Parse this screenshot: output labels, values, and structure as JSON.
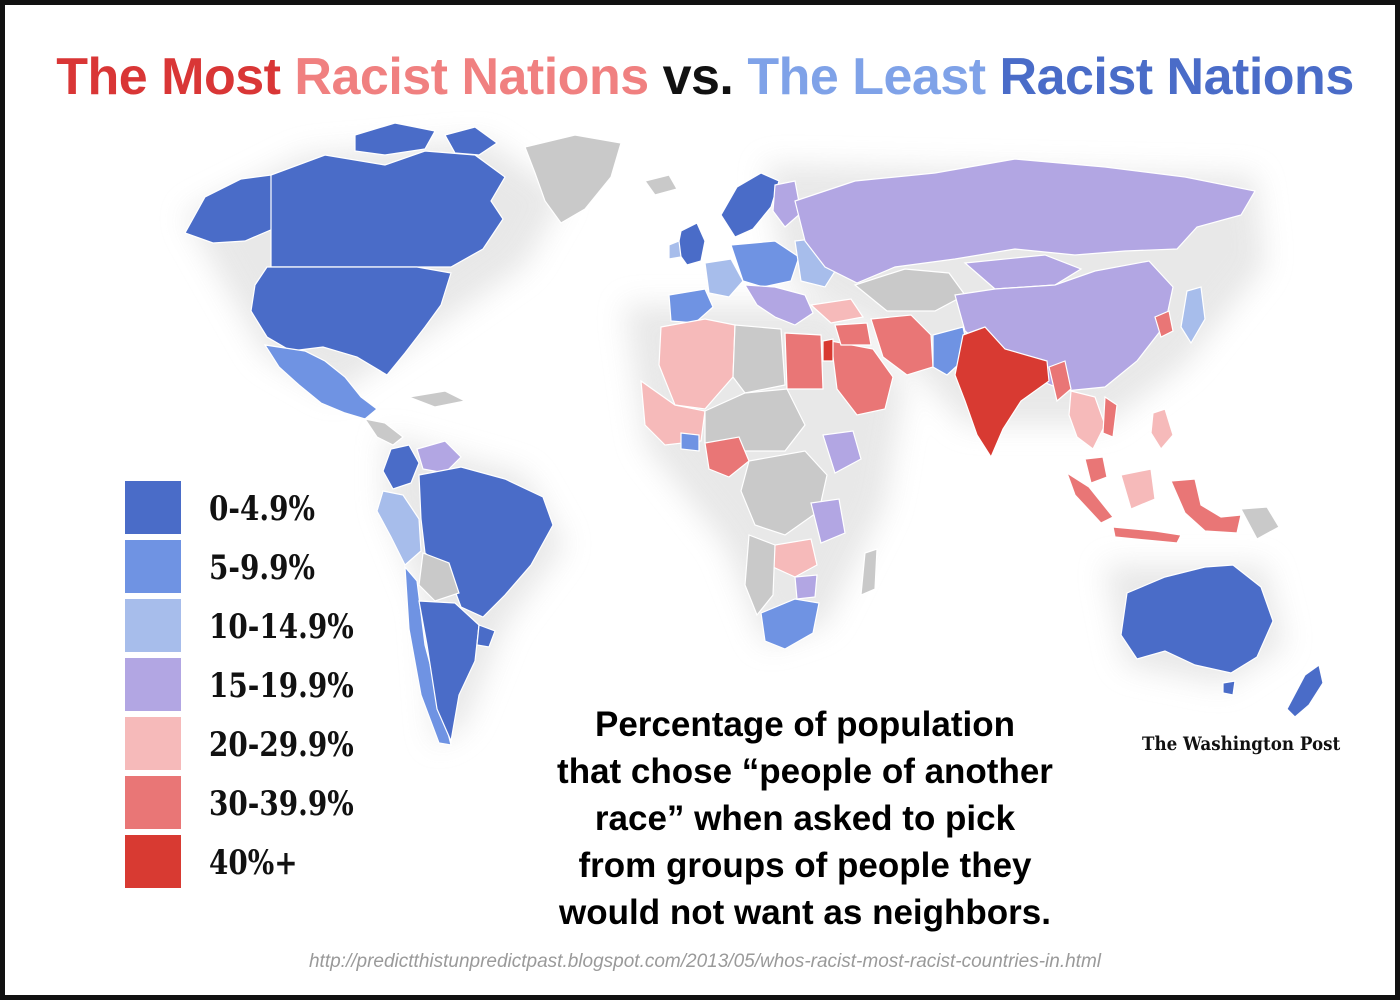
{
  "title": {
    "parts": [
      {
        "text": "The Most",
        "color": "#d93636"
      },
      {
        "text": "Racist Nations",
        "color": "#f08080"
      },
      {
        "text": "vs.",
        "color": "#111111"
      },
      {
        "text": "The Least",
        "color": "#7fa2e8"
      },
      {
        "text": "Racist Nations",
        "color": "#4a6cc8"
      }
    ]
  },
  "legend": [
    {
      "label": "0-4.9%",
      "color": "#4a6cc8"
    },
    {
      "label": "5-9.9%",
      "color": "#6f93e3"
    },
    {
      "label": "10-14.9%",
      "color": "#a7bdeb"
    },
    {
      "label": "15-19.9%",
      "color": "#b2a6e3"
    },
    {
      "label": "20-29.9%",
      "color": "#f6baba"
    },
    {
      "label": "30-39.9%",
      "color": "#e97676"
    },
    {
      "label": "40%+",
      "color": "#d83a32"
    }
  ],
  "no_data_color": "#c9c9c9",
  "caption_lines": [
    "Percentage of population",
    "that chose “people of another",
    "race” when asked to pick",
    "from groups of people they",
    "would not want as neighbors."
  ],
  "credit": "The Washington Post",
  "source_url": "http://predictthistunpredictpast.blogspot.com/2013/05/whos-racist-most-racist-countries-in.html"
}
